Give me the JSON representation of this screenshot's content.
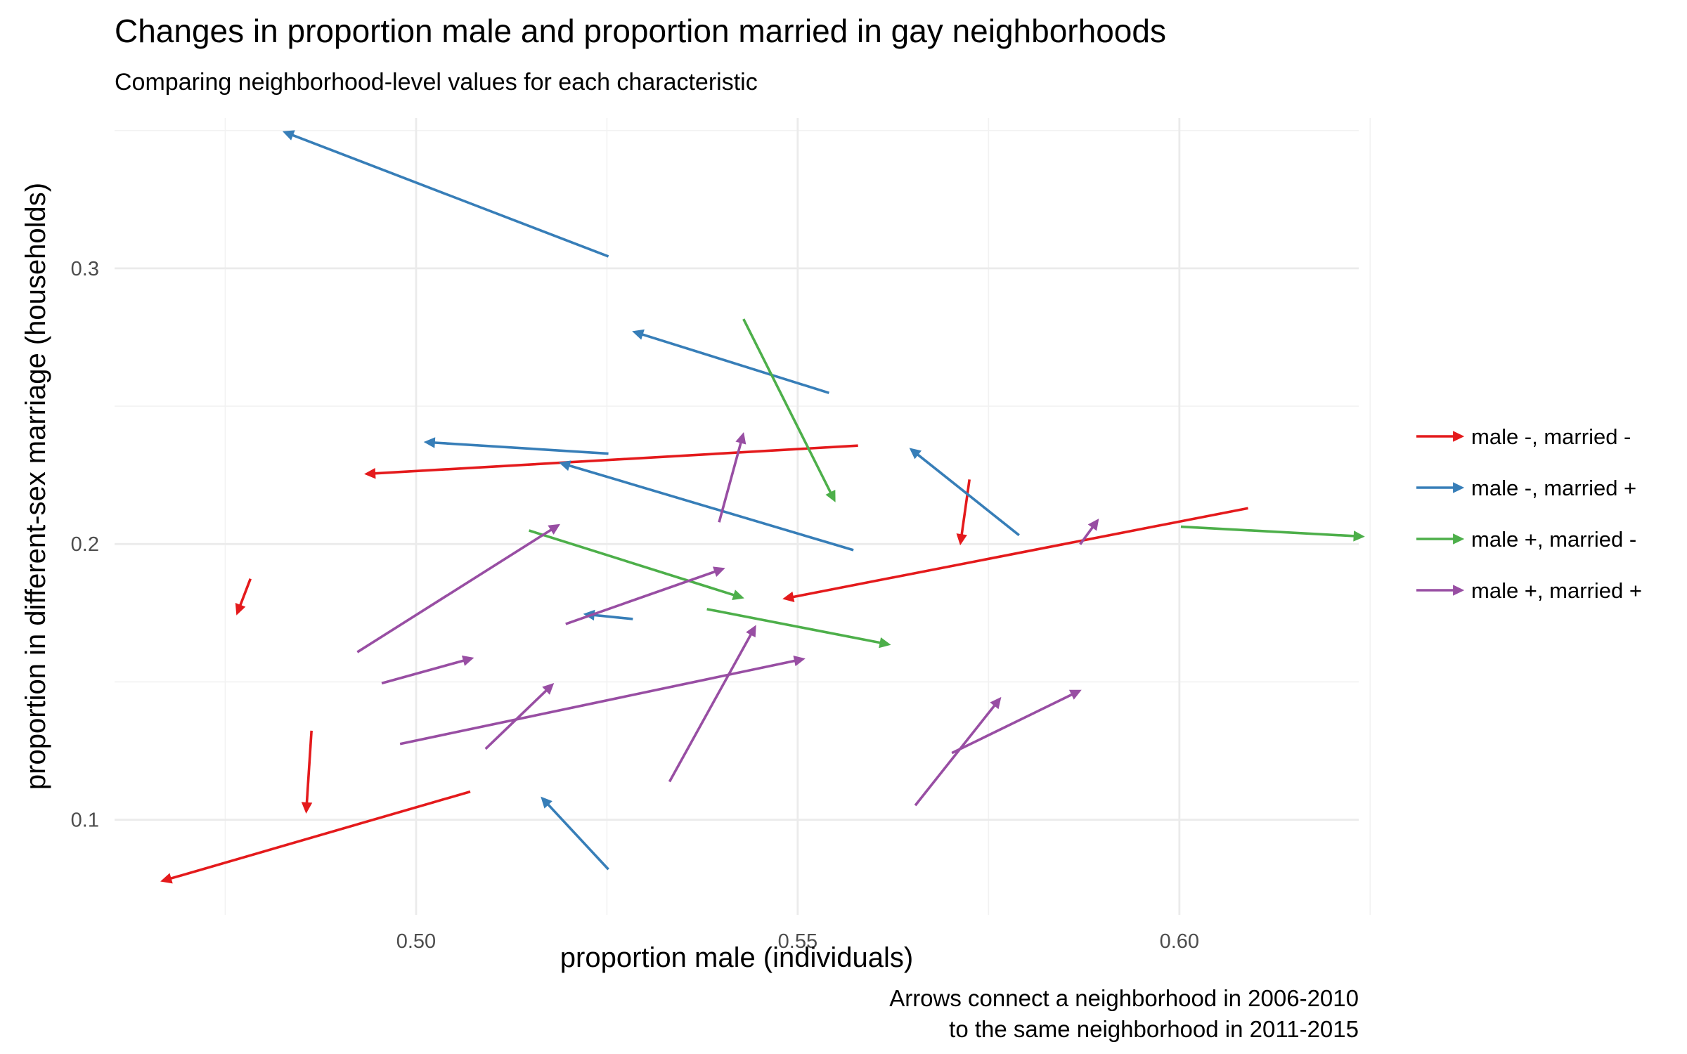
{
  "chart_data": {
    "type": "line",
    "title": "Changes in proportion male and proportion married in gay neighborhoods",
    "subtitle": "Comparing neighborhood-level values for each characteristic",
    "xlabel": "proportion male (individuals)",
    "ylabel": "proportion in different-sex marriage (households)",
    "caption": [
      "Arrows connect a neighborhood in 2006-2010",
      "to the same neighborhood in 2011-2015"
    ],
    "xlim": [
      0.4605,
      0.6235
    ],
    "ylim": [
      0.0655,
      0.3545
    ],
    "x_major_ticks": [
      0.5,
      0.55,
      0.6
    ],
    "x_tick_labels": [
      "0.50",
      "0.55",
      "0.60"
    ],
    "x_minor_ticks": [
      0.475,
      0.525,
      0.575,
      0.625
    ],
    "y_major_ticks": [
      0.1,
      0.2,
      0.3
    ],
    "y_tick_labels": [
      "0.1",
      "0.2",
      "0.3"
    ],
    "y_minor_ticks": [
      0.15,
      0.25,
      0.35
    ],
    "grid": true,
    "legend_position": "right",
    "series": [
      {
        "name": "male -, married -",
        "color": "#e41a1c",
        "arrows": [
          {
            "from": [
              0.5579,
              0.2357
            ],
            "to": [
              0.4933,
              0.2254
            ]
          },
          {
            "from": [
              0.609,
              0.213
            ],
            "to": [
              0.5481,
              0.1801
            ]
          },
          {
            "from": [
              0.5725,
              0.2234
            ],
            "to": [
              0.5713,
              0.1998
            ]
          },
          {
            "from": [
              0.4783,
              0.1874
            ],
            "to": [
              0.4765,
              0.1744
            ]
          },
          {
            "from": [
              0.4863,
              0.1323
            ],
            "to": [
              0.4856,
              0.1025
            ]
          },
          {
            "from": [
              0.5071,
              0.1102
            ],
            "to": [
              0.4666,
              0.0777
            ]
          }
        ]
      },
      {
        "name": "male -, married +",
        "color": "#377eb8",
        "arrows": [
          {
            "from": [
              0.5252,
              0.3043
            ],
            "to": [
              0.4826,
              0.3496
            ]
          },
          {
            "from": [
              0.5541,
              0.2548
            ],
            "to": [
              0.5284,
              0.2771
            ]
          },
          {
            "from": [
              0.5252,
              0.2328
            ],
            "to": [
              0.5011,
              0.237
            ]
          },
          {
            "from": [
              0.5573,
              0.1978
            ],
            "to": [
              0.5188,
              0.2295
            ]
          },
          {
            "from": [
              0.579,
              0.2032
            ],
            "to": [
              0.5647,
              0.2347
            ]
          },
          {
            "from": [
              0.5284,
              0.1728
            ],
            "to": [
              0.522,
              0.1746
            ]
          },
          {
            "from": [
              0.5252,
              0.082
            ],
            "to": [
              0.5164,
              0.1082
            ]
          }
        ]
      },
      {
        "name": "male +, married -",
        "color": "#4daf4a",
        "arrows": [
          {
            "from": [
              0.5429,
              0.2816
            ],
            "to": [
              0.5549,
              0.2154
            ]
          },
          {
            "from": [
              0.6002,
              0.2063
            ],
            "to": [
              0.6242,
              0.2027
            ]
          },
          {
            "from": [
              0.5148,
              0.2049
            ],
            "to": [
              0.5429,
              0.1804
            ]
          },
          {
            "from": [
              0.5381,
              0.1764
            ],
            "to": [
              0.5621,
              0.1635
            ]
          }
        ]
      },
      {
        "name": "male +, married +",
        "color": "#984ea3",
        "arrows": [
          {
            "from": [
              0.5397,
              0.2079
            ],
            "to": [
              0.5429,
              0.2403
            ]
          },
          {
            "from": [
              0.4923,
              0.1608
            ],
            "to": [
              0.5188,
              0.2071
            ]
          },
          {
            "from": [
              0.5196,
              0.171
            ],
            "to": [
              0.5404,
              0.1912
            ]
          },
          {
            "from": [
              0.587,
              0.1999
            ],
            "to": [
              0.5894,
              0.209
            ]
          },
          {
            "from": [
              0.4955,
              0.1495
            ],
            "to": [
              0.5075,
              0.1587
            ]
          },
          {
            "from": [
              0.4979,
              0.1275
            ],
            "to": [
              0.5509,
              0.1584
            ]
          },
          {
            "from": [
              0.5091,
              0.1257
            ],
            "to": [
              0.518,
              0.1494
            ]
          },
          {
            "from": [
              0.5332,
              0.1138
            ],
            "to": [
              0.5445,
              0.1704
            ]
          },
          {
            "from": [
              0.5654,
              0.1052
            ],
            "to": [
              0.5766,
              0.1443
            ]
          },
          {
            "from": [
              0.5702,
              0.1242
            ],
            "to": [
              0.5871,
              0.147
            ]
          }
        ]
      }
    ]
  }
}
